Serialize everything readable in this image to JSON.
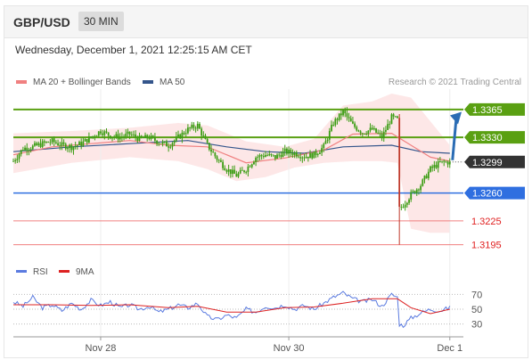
{
  "header": {
    "pair": "GBP/USD",
    "timeframe": "30 MIN"
  },
  "timestamp": "Wednesday, December 1, 2021 12:25:15 AM CET",
  "legend": {
    "ma20_label": "MA 20 + Bollinger Bands",
    "ma50_label": "MA 50",
    "credit": "Research © 2021 Trading Central"
  },
  "rsi_legend": {
    "rsi_label": "RSI",
    "ma9_label": "9MA"
  },
  "colors": {
    "candle": "#3b9d13",
    "ma20": "#f08080",
    "ma50": "#34558b",
    "resistance": "#5aa012",
    "pivot": "#2f6fe0",
    "support": "#f08080",
    "support_text": "#e02020",
    "arrow": "#2a6cb4",
    "price_box": "#333333",
    "rsi_line": "#5b7be0",
    "rsi_ma": "#dd2222"
  },
  "chart_data": [
    {
      "type": "candlestick",
      "title": "GBP/USD 30 MIN",
      "x_ticks": [
        "Nov 28",
        "Nov 30",
        "Dec 1"
      ],
      "ylim": [
        1.318,
        1.3385
      ],
      "current_price": 1.3299,
      "current_price_label": "1.3299",
      "levels": [
        {
          "value": 1.3365,
          "label": "1.3365",
          "role": "resistance"
        },
        {
          "value": 1.333,
          "label": "1.3330",
          "role": "resistance"
        },
        {
          "value": 1.326,
          "label": "1.3260",
          "role": "pivot"
        },
        {
          "value": 1.3225,
          "label": "1.3225",
          "role": "support"
        },
        {
          "value": 1.3195,
          "label": "1.3195",
          "role": "support"
        }
      ],
      "series_close": [
        [
          0,
          1.33
        ],
        [
          5,
          1.3316
        ],
        [
          10,
          1.3318
        ],
        [
          15,
          1.3322
        ],
        [
          20,
          1.3325
        ],
        [
          25,
          1.332
        ],
        [
          30,
          1.3318
        ],
        [
          35,
          1.3322
        ],
        [
          40,
          1.333
        ],
        [
          45,
          1.3338
        ],
        [
          50,
          1.3332
        ],
        [
          55,
          1.333
        ],
        [
          60,
          1.3334
        ],
        [
          65,
          1.3328
        ],
        [
          70,
          1.333
        ],
        [
          75,
          1.3324
        ],
        [
          80,
          1.332
        ],
        [
          85,
          1.333
        ],
        [
          90,
          1.334
        ],
        [
          95,
          1.3345
        ],
        [
          100,
          1.332
        ],
        [
          105,
          1.3303
        ],
        [
          110,
          1.329
        ],
        [
          115,
          1.3282
        ],
        [
          120,
          1.329
        ],
        [
          125,
          1.3305
        ],
        [
          130,
          1.3308
        ],
        [
          135,
          1.3305
        ],
        [
          140,
          1.3312
        ],
        [
          145,
          1.331
        ],
        [
          150,
          1.3306
        ],
        [
          155,
          1.3308
        ],
        [
          160,
          1.3318
        ],
        [
          165,
          1.3348
        ],
        [
          170,
          1.3362
        ],
        [
          175,
          1.3345
        ],
        [
          180,
          1.3336
        ],
        [
          185,
          1.334
        ],
        [
          190,
          1.333
        ],
        [
          195,
          1.3355
        ],
        [
          198,
          1.3352
        ],
        [
          199,
          1.324
        ],
        [
          201,
          1.3245
        ],
        [
          205,
          1.3258
        ],
        [
          210,
          1.327
        ],
        [
          215,
          1.329
        ],
        [
          220,
          1.3298
        ],
        [
          225,
          1.3299
        ]
      ],
      "low_wick": {
        "x": 199,
        "value": 1.3195
      },
      "high_wick": {
        "x": 172,
        "value": 1.3368
      },
      "ma20": [
        [
          0,
          1.3308
        ],
        [
          20,
          1.3318
        ],
        [
          40,
          1.3322
        ],
        [
          60,
          1.3326
        ],
        [
          80,
          1.332
        ],
        [
          100,
          1.3318
        ],
        [
          120,
          1.3298
        ],
        [
          140,
          1.3304
        ],
        [
          160,
          1.3314
        ],
        [
          175,
          1.3334
        ],
        [
          195,
          1.3335
        ],
        [
          205,
          1.332
        ],
        [
          215,
          1.3305
        ],
        [
          225,
          1.33
        ]
      ],
      "ma50": [
        [
          0,
          1.3312
        ],
        [
          30,
          1.3318
        ],
        [
          60,
          1.3322
        ],
        [
          90,
          1.3326
        ],
        [
          110,
          1.3318
        ],
        [
          130,
          1.3312
        ],
        [
          150,
          1.331
        ],
        [
          170,
          1.3318
        ],
        [
          195,
          1.332
        ],
        [
          210,
          1.3312
        ],
        [
          225,
          1.331
        ]
      ],
      "bb_upper": [
        [
          0,
          1.3335
        ],
        [
          30,
          1.3338
        ],
        [
          60,
          1.3342
        ],
        [
          85,
          1.3348
        ],
        [
          100,
          1.3345
        ],
        [
          120,
          1.3325
        ],
        [
          140,
          1.3318
        ],
        [
          155,
          1.3328
        ],
        [
          170,
          1.337
        ],
        [
          185,
          1.3375
        ],
        [
          195,
          1.3385
        ],
        [
          205,
          1.338
        ],
        [
          215,
          1.335
        ],
        [
          225,
          1.332
        ]
      ],
      "bb_lower": [
        [
          0,
          1.3285
        ],
        [
          30,
          1.3298
        ],
        [
          60,
          1.3305
        ],
        [
          85,
          1.33
        ],
        [
          100,
          1.329
        ],
        [
          115,
          1.3275
        ],
        [
          130,
          1.328
        ],
        [
          145,
          1.3292
        ],
        [
          160,
          1.3298
        ],
        [
          175,
          1.33
        ],
        [
          190,
          1.33
        ],
        [
          198,
          1.3298
        ],
        [
          205,
          1.3215
        ],
        [
          215,
          1.321
        ],
        [
          225,
          1.321
        ]
      ]
    },
    {
      "type": "line",
      "title": "RSI",
      "y_ticks": [
        "70",
        "50",
        "30"
      ],
      "ylim": [
        20,
        80
      ],
      "series": [
        {
          "name": "RSI",
          "values": [
            [
              0,
              60
            ],
            [
              5,
              54
            ],
            [
              10,
              66
            ],
            [
              15,
              52
            ],
            [
              20,
              56
            ],
            [
              25,
              48
            ],
            [
              30,
              58
            ],
            [
              35,
              50
            ],
            [
              40,
              62
            ],
            [
              45,
              55
            ],
            [
              50,
              60
            ],
            [
              55,
              52
            ],
            [
              60,
              56
            ],
            [
              65,
              50
            ],
            [
              70,
              54
            ],
            [
              75,
              46
            ],
            [
              80,
              50
            ],
            [
              85,
              56
            ],
            [
              90,
              52
            ],
            [
              95,
              58
            ],
            [
              100,
              40
            ],
            [
              105,
              36
            ],
            [
              110,
              42
            ],
            [
              115,
              38
            ],
            [
              120,
              50
            ],
            [
              125,
              46
            ],
            [
              130,
              54
            ],
            [
              135,
              52
            ],
            [
              140,
              56
            ],
            [
              145,
              50
            ],
            [
              150,
              55
            ],
            [
              155,
              50
            ],
            [
              160,
              58
            ],
            [
              165,
              66
            ],
            [
              170,
              72
            ],
            [
              175,
              64
            ],
            [
              180,
              60
            ],
            [
              185,
              63
            ],
            [
              190,
              54
            ],
            [
              195,
              70
            ],
            [
              198,
              66
            ],
            [
              199,
              30
            ],
            [
              201,
              28
            ],
            [
              205,
              38
            ],
            [
              210,
              45
            ],
            [
              215,
              50
            ],
            [
              220,
              48
            ],
            [
              225,
              52
            ]
          ]
        },
        {
          "name": "9MA",
          "values": [
            [
              0,
              56
            ],
            [
              20,
              56
            ],
            [
              40,
              55
            ],
            [
              60,
              56
            ],
            [
              80,
              52
            ],
            [
              95,
              54
            ],
            [
              110,
              46
            ],
            [
              125,
              46
            ],
            [
              140,
              52
            ],
            [
              155,
              53
            ],
            [
              170,
              58
            ],
            [
              185,
              64
            ],
            [
              198,
              64
            ],
            [
              205,
              52
            ],
            [
              215,
              44
            ],
            [
              225,
              50
            ]
          ]
        }
      ]
    }
  ]
}
